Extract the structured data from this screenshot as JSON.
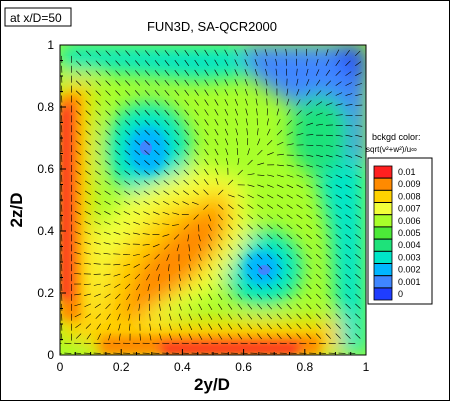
{
  "chart_data": {
    "type": "heatmap",
    "title": "FUN3D, SA-QCR2000",
    "station_label": "at x/D=50",
    "xlabel": "2y/D",
    "ylabel": "2z/D",
    "xlim": [
      0,
      1
    ],
    "ylim": [
      0,
      1
    ],
    "x_ticks": [
      "0",
      "0.2",
      "0.4",
      "0.6",
      "0.8",
      "1"
    ],
    "y_ticks": [
      "0",
      "0.2",
      "0.4",
      "0.6",
      "0.8",
      "1"
    ],
    "legend": {
      "title_line1": "bckgd color:",
      "title_line2": "sqrt(v²+w²)/u∞",
      "levels": [
        "0.01",
        "0.009",
        "0.008",
        "0.007",
        "0.006",
        "0.005",
        "0.004",
        "0.003",
        "0.002",
        "0.001",
        "0"
      ],
      "colors": [
        "#ff2020",
        "#ff8a00",
        "#ffd200",
        "#f2ff3a",
        "#a8ff2a",
        "#4cea38",
        "#1ee27a",
        "#00e6c8",
        "#00b6ff",
        "#3f86ff",
        "#1f3dff"
      ]
    },
    "color_levels": [
      0,
      0.001,
      0.002,
      0.003,
      0.004,
      0.005,
      0.006,
      0.007,
      0.008,
      0.009,
      0.01
    ],
    "features": [
      {
        "name": "low-speed core",
        "y": 0.27,
        "z": 0.68,
        "value": 0.001
      },
      {
        "name": "low-speed core",
        "y": 0.68,
        "z": 0.27,
        "value": 0.001
      },
      {
        "name": "diagonal high-speed band",
        "y": 0.38,
        "z": 0.38,
        "value": 0.009
      },
      {
        "name": "wall jet along z=0",
        "value": 0.01
      },
      {
        "name": "wall jet along y=0",
        "value": 0.01
      }
    ],
    "grid": false,
    "legend_position": "right"
  }
}
